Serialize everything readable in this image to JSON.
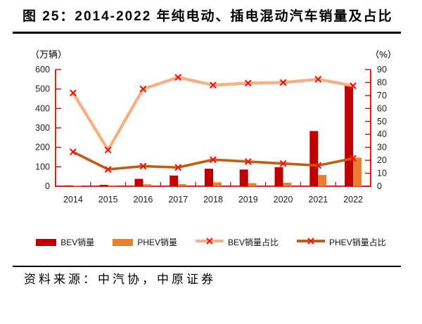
{
  "title": "图 25：2014-2022 年纯电动、插电混动汽车销量及占比",
  "source_note": "资料来源：中汽协，中原证券",
  "chart_data": {
    "type": "combo-bar-line",
    "title": "2014-2022 年纯电动、插电混动汽车销量及占比",
    "categories": [
      "2014",
      "2015",
      "2016",
      "2017",
      "2018",
      "2019",
      "2020",
      "2021",
      "2022"
    ],
    "series": [
      {
        "name": "BEV销量",
        "kind": "bar",
        "axis": "left",
        "unit": "万辆",
        "color": "#c00000",
        "values": [
          4,
          7,
          38,
          55,
          90,
          86,
          98,
          284,
          520
        ]
      },
      {
        "name": "PHEV销量",
        "kind": "bar",
        "axis": "left",
        "unit": "万辆",
        "color": "#ed7d31",
        "values": [
          3,
          5,
          10,
          11,
          20,
          16,
          18,
          58,
          147
        ]
      },
      {
        "name": "BEV销量占比",
        "kind": "line",
        "axis": "right",
        "unit": "%",
        "color": "#f5b183",
        "marker": "x",
        "marker_color": "#fb0d0d",
        "values": [
          72,
          28,
          75,
          84,
          78,
          79.5,
          80,
          82.5,
          77.5
        ]
      },
      {
        "name": "PHEV销量占比",
        "kind": "line",
        "axis": "right",
        "unit": "%",
        "color": "#c55a11",
        "marker": "x",
        "marker_color": "#fb0d0d",
        "values": [
          26.5,
          13,
          15.5,
          14.5,
          20.5,
          19,
          17.5,
          16,
          21.5
        ]
      }
    ],
    "left_axis": {
      "title": "（万辆）",
      "min": 0,
      "max": 600,
      "step": 100,
      "ticks": [
        0,
        100,
        200,
        300,
        400,
        500,
        600
      ]
    },
    "right_axis": {
      "title": "（%）",
      "min": 0,
      "max": 90,
      "step": 10,
      "ticks": [
        0,
        10,
        20,
        30,
        40,
        50,
        60,
        70,
        80,
        90
      ]
    },
    "styles": {
      "axis_color": "#e60000",
      "tick_label_color": "#1f1f1f",
      "marker_glyph": "x",
      "grid": "off",
      "legend_position": "bottom"
    }
  }
}
